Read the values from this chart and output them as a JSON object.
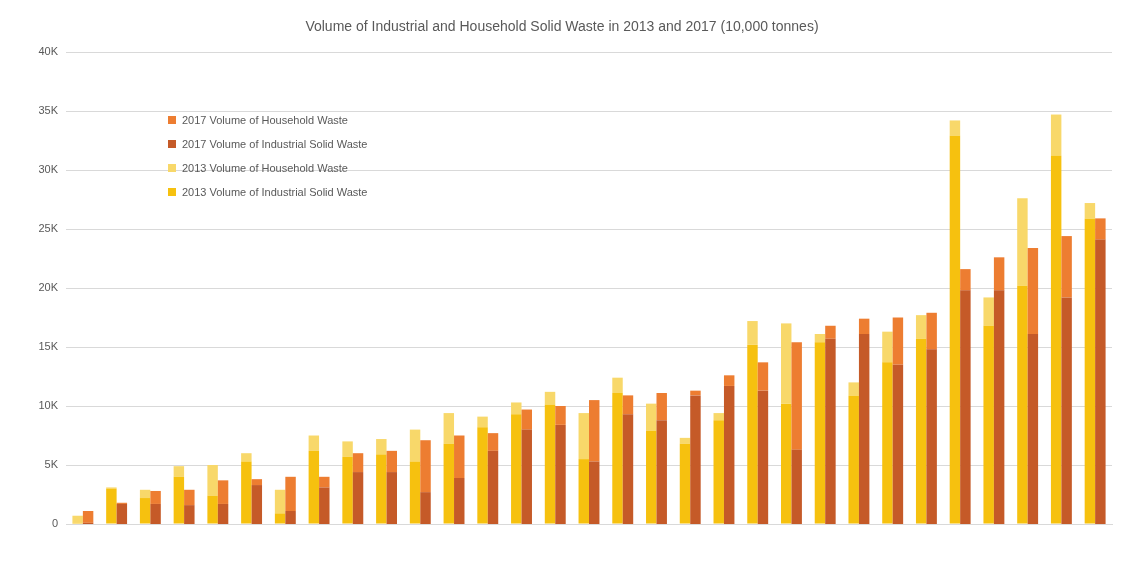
{
  "chart_data": [
    {
      "type": "bar",
      "title": "Volume of Industrial and Household Solid Waste in 2013 and 2017 (10,000 tonnes)",
      "categories": [
        null,
        null,
        null,
        null,
        null,
        null,
        null,
        null,
        null,
        null,
        null,
        null,
        null,
        null,
        null,
        null,
        null,
        null,
        null,
        null,
        null,
        null,
        null,
        null,
        null,
        null,
        null,
        null,
        null,
        null,
        null
      ],
      "stacked": true,
      "series": [
        {
          "name": "2013 Volume of Industrial Solid Waste",
          "color": "#f6c10f",
          "values": [
            100,
            3000,
            2200,
            4000,
            2400,
            5300,
            900,
            6200,
            5700,
            5900,
            5300,
            6800,
            8200,
            9300,
            10100,
            5500,
            11100,
            7900,
            6800,
            8800,
            15200,
            10200,
            15400,
            10900,
            13700,
            15700,
            32900,
            16800,
            20200,
            31200,
            25900
          ]
        },
        {
          "name": "2013 Volume of Household Waste",
          "color": "#f8d86a",
          "values": [
            600,
            100,
            700,
            900,
            2600,
            700,
            2000,
            1300,
            1300,
            1300,
            2700,
            2600,
            900,
            1000,
            1100,
            3900,
            1300,
            2300,
            500,
            600,
            2000,
            6800,
            700,
            1100,
            2600,
            2000,
            1300,
            2400,
            7400,
            3500,
            1300
          ]
        }
      ],
      "ylim": [
        0,
        40000
      ],
      "yticks": [
        0,
        {
          "value": 5000,
          "label": "5K"
        },
        {
          "value": 10000,
          "label": "10K"
        },
        {
          "value": 15000,
          "label": "15K"
        },
        {
          "value": 20000,
          "label": "20K"
        },
        {
          "value": 25000,
          "label": "25K"
        },
        {
          "value": 30000,
          "label": "30K"
        },
        {
          "value": 35000,
          "label": "35K"
        },
        {
          "value": 40000,
          "label": "40K"
        }
      ],
      "grid": "y",
      "legend": "top left"
    },
    {
      "type": "bar",
      "categories": [
        null,
        null,
        null,
        null,
        null,
        null,
        null,
        null,
        null,
        null,
        null,
        null,
        null,
        null,
        null,
        null,
        null,
        null,
        null,
        null,
        null,
        null,
        null,
        null,
        null,
        null,
        null,
        null,
        null,
        null,
        null
      ],
      "stacked": true,
      "series": [
        {
          "name": "2017 Volume of Industrial Solid Waste",
          "color": "#c55a28",
          "values": [
            100,
            1700,
            1700,
            1600,
            1700,
            3300,
            1100,
            3100,
            4400,
            4400,
            2700,
            3900,
            6200,
            8000,
            8400,
            5300,
            9300,
            8800,
            10900,
            11700,
            11300,
            6300,
            15700,
            16100,
            13500,
            14800,
            19800,
            19800,
            16100,
            19200,
            24100
          ]
        },
        {
          "name": "2017 Volume of Household Waste",
          "color": "#ed7d31",
          "values": [
            1000,
            100,
            1100,
            1300,
            2000,
            500,
            2900,
            900,
            1600,
            1800,
            4400,
            3600,
            1500,
            1700,
            1600,
            5200,
            1600,
            2300,
            400,
            900,
            2400,
            9100,
            1100,
            1300,
            4000,
            3100,
            1800,
            2800,
            7300,
            5200,
            1800
          ]
        }
      ],
      "ylim": [
        0,
        40000
      ],
      "legend": "top left"
    }
  ]
}
